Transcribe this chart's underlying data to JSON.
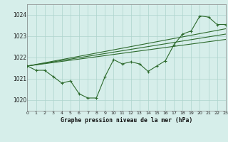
{
  "title": "Graphe pression niveau de la mer (hPa)",
  "bg_color": "#d6eeea",
  "grid_color": "#add4cc",
  "line_color": "#2d6a2d",
  "x_min": 0,
  "x_max": 23,
  "y_min": 1019.5,
  "y_max": 1024.5,
  "y_ticks": [
    1020,
    1021,
    1022,
    1023,
    1024
  ],
  "x_ticks": [
    0,
    1,
    2,
    3,
    4,
    5,
    6,
    7,
    8,
    9,
    10,
    11,
    12,
    13,
    14,
    15,
    16,
    17,
    18,
    19,
    20,
    21,
    22,
    23
  ],
  "main_data": [
    [
      0,
      1021.6
    ],
    [
      1,
      1021.4
    ],
    [
      2,
      1021.4
    ],
    [
      3,
      1021.1
    ],
    [
      4,
      1020.8
    ],
    [
      5,
      1020.9
    ],
    [
      6,
      1020.3
    ],
    [
      7,
      1020.1
    ],
    [
      8,
      1020.1
    ],
    [
      9,
      1021.1
    ],
    [
      10,
      1021.9
    ],
    [
      11,
      1021.7
    ],
    [
      12,
      1021.8
    ],
    [
      13,
      1021.7
    ],
    [
      14,
      1021.35
    ],
    [
      15,
      1021.6
    ],
    [
      16,
      1021.85
    ],
    [
      17,
      1022.6
    ],
    [
      18,
      1023.1
    ],
    [
      19,
      1023.25
    ],
    [
      20,
      1023.95
    ],
    [
      21,
      1023.9
    ],
    [
      22,
      1023.55
    ],
    [
      23,
      1023.55
    ]
  ],
  "trend_line1": [
    [
      0,
      1021.6
    ],
    [
      23,
      1022.85
    ]
  ],
  "trend_line2": [
    [
      0,
      1021.6
    ],
    [
      23,
      1023.1
    ]
  ],
  "trend_line3": [
    [
      0,
      1021.6
    ],
    [
      23,
      1023.35
    ]
  ]
}
